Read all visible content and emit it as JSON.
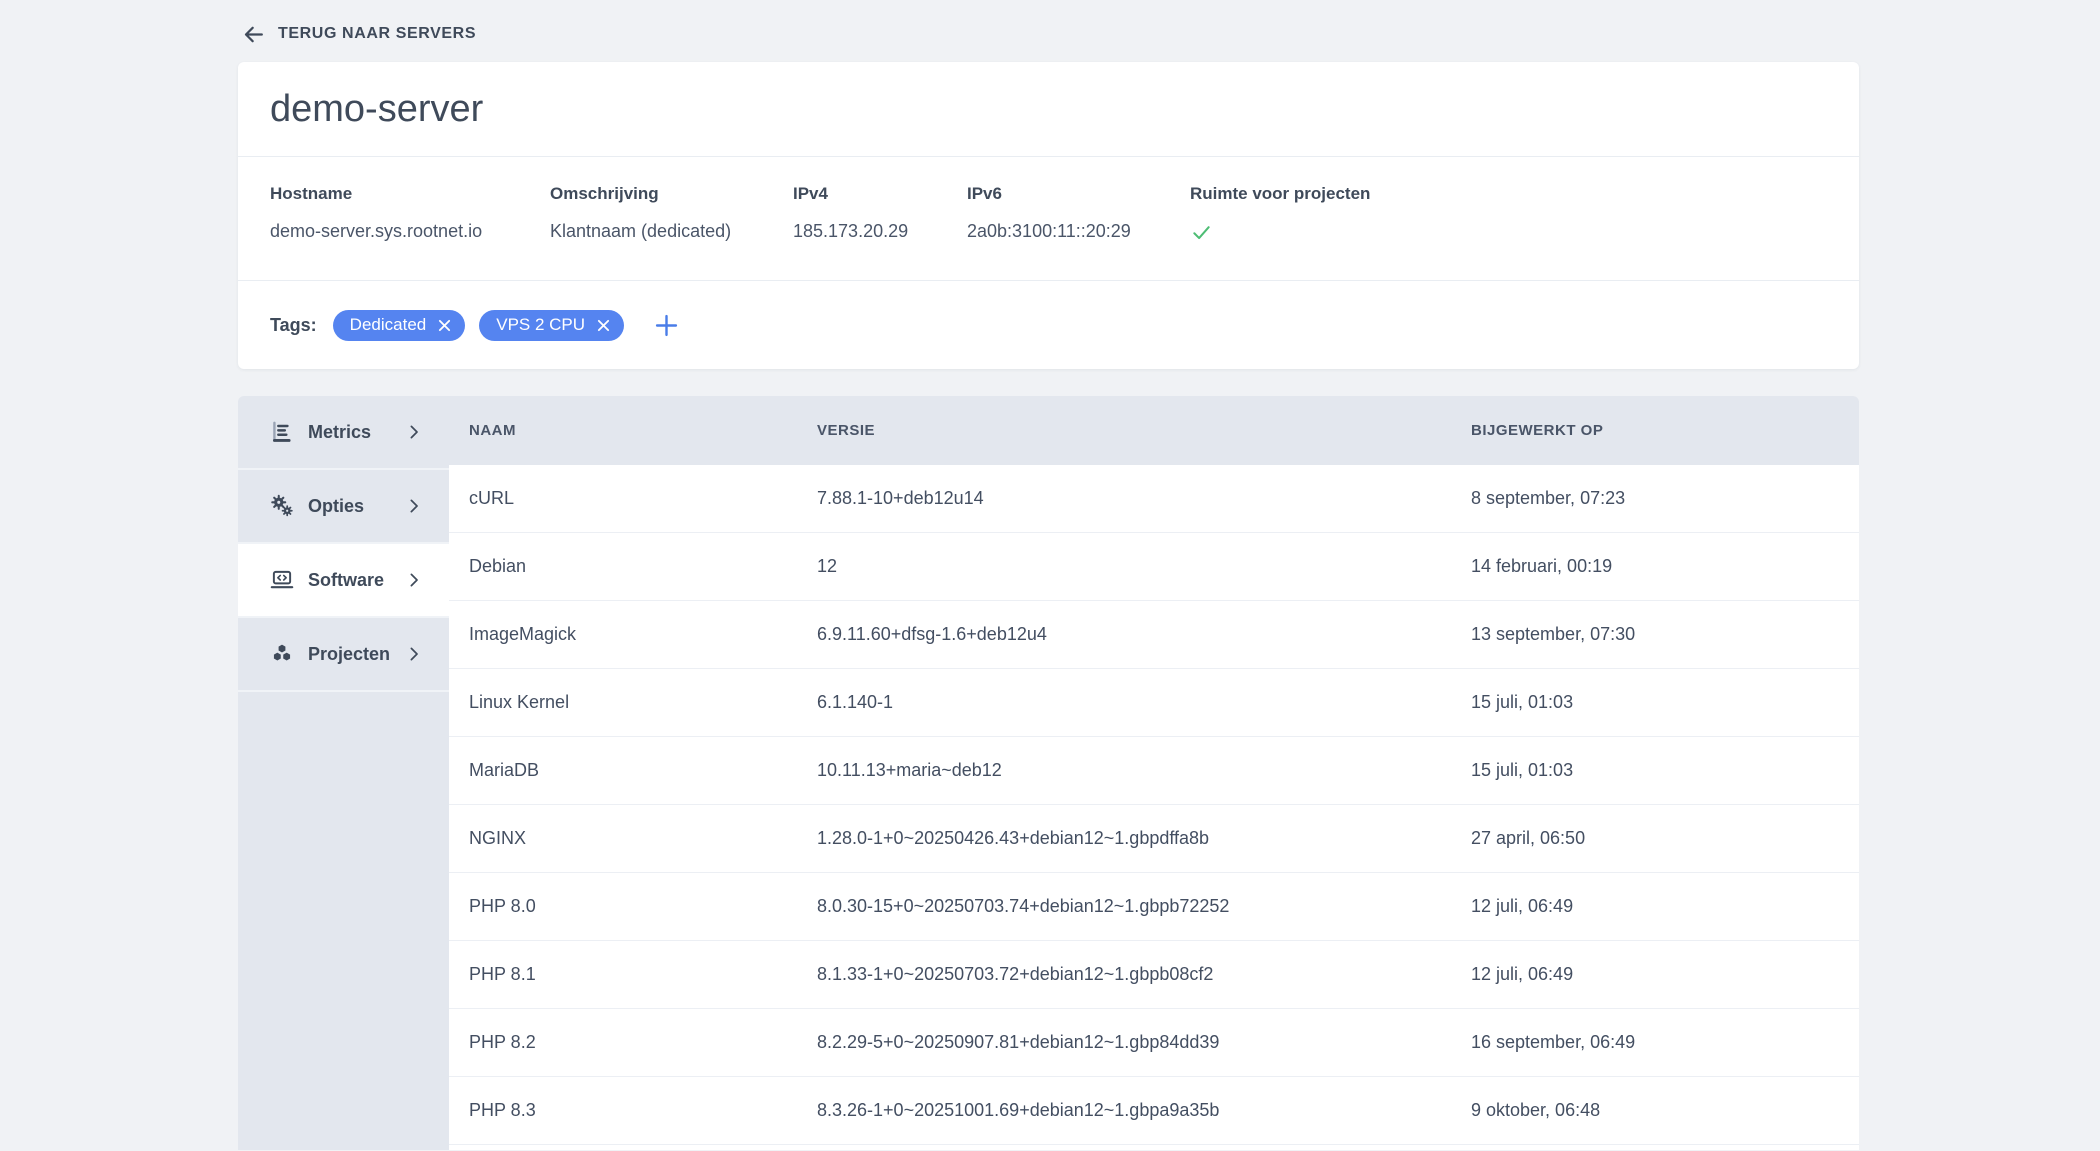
{
  "colors": {
    "page_bg": "#f0f2f5",
    "panel_gray": "#e3e7ee",
    "text_dark": "#3f4a5a",
    "tag_blue": "#5584f0",
    "plus_blue": "#4a7de8",
    "check_green": "#4dbd74"
  },
  "back_link": {
    "label": "TERUG NAAR SERVERS",
    "icon": "back-arrow-icon"
  },
  "server": {
    "title": "demo-server"
  },
  "info": {
    "fields": [
      {
        "label": "Hostname",
        "value": "demo-server.sys.rootnet.io"
      },
      {
        "label": "Omschrijving",
        "value": "Klantnaam (dedicated)"
      },
      {
        "label": "IPv4",
        "value": "185.173.20.29"
      },
      {
        "label": "IPv6",
        "value": "2a0b:3100:11::20:29"
      },
      {
        "label": "Ruimte voor projecten",
        "value_icon": "check-icon"
      }
    ]
  },
  "tags": {
    "label": "Tags:",
    "items": [
      {
        "name": "Dedicated",
        "remove_icon": "close-icon"
      },
      {
        "name": "VPS 2 CPU",
        "remove_icon": "close-icon"
      }
    ],
    "add_icon": "plus-icon"
  },
  "sidebar": {
    "items": [
      {
        "label": "Metrics",
        "icon": "metrics-chart-icon",
        "active": false
      },
      {
        "label": "Opties",
        "icon": "gears-icon",
        "active": false
      },
      {
        "label": "Software",
        "icon": "laptop-code-icon",
        "active": true
      },
      {
        "label": "Projecten",
        "icon": "cubes-icon",
        "active": false
      }
    ]
  },
  "table": {
    "columns": [
      "NAAM",
      "VERSIE",
      "BIJGEWERKT OP"
    ],
    "rows": [
      {
        "naam": "cURL",
        "versie": "7.88.1-10+deb12u14",
        "bijgewerkt": "8 september, 07:23"
      },
      {
        "naam": "Debian",
        "versie": "12",
        "bijgewerkt": "14 februari, 00:19"
      },
      {
        "naam": "ImageMagick",
        "versie": "6.9.11.60+dfsg-1.6+deb12u4",
        "bijgewerkt": "13 september, 07:30"
      },
      {
        "naam": "Linux Kernel",
        "versie": "6.1.140-1",
        "bijgewerkt": "15 juli, 01:03"
      },
      {
        "naam": "MariaDB",
        "versie": "10.11.13+maria~deb12",
        "bijgewerkt": "15 juli, 01:03"
      },
      {
        "naam": "NGINX",
        "versie": "1.28.0-1+0~20250426.43+debian12~1.gbpdffa8b",
        "bijgewerkt": "27 april, 06:50"
      },
      {
        "naam": "PHP 8.0",
        "versie": "8.0.30-15+0~20250703.74+debian12~1.gbpb72252",
        "bijgewerkt": "12 juli, 06:49"
      },
      {
        "naam": "PHP 8.1",
        "versie": "8.1.33-1+0~20250703.72+debian12~1.gbpb08cf2",
        "bijgewerkt": "12 juli, 06:49"
      },
      {
        "naam": "PHP 8.2",
        "versie": "8.2.29-5+0~20250907.81+debian12~1.gbp84dd39",
        "bijgewerkt": "16 september, 06:49"
      },
      {
        "naam": "PHP 8.3",
        "versie": "8.3.26-1+0~20251001.69+debian12~1.gbpa9a35b",
        "bijgewerkt": "9 oktober, 06:48"
      }
    ]
  }
}
